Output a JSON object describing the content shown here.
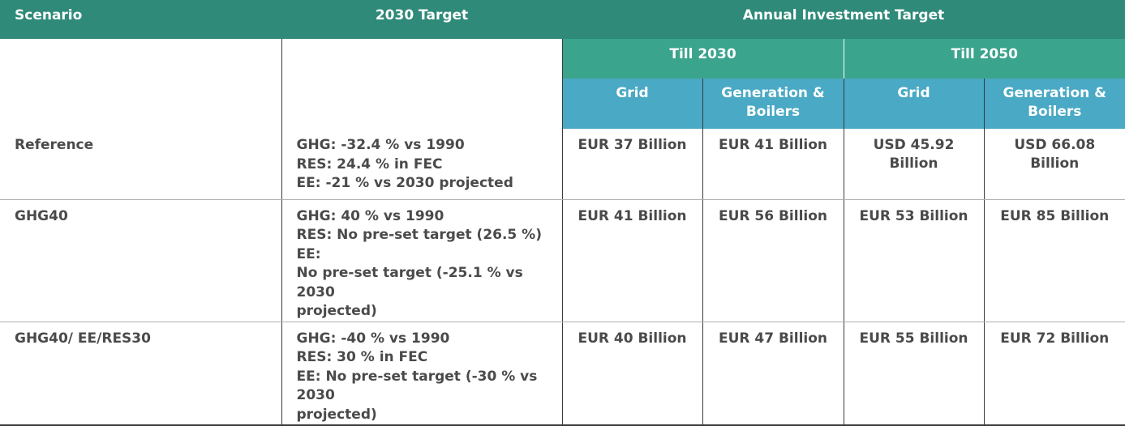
{
  "header": {
    "scenario": "Scenario",
    "target_2030": "2030 Target",
    "annual_investment": "Annual Investment Target",
    "till_2030": "Till 2030",
    "till_2050": "Till 2050",
    "grid_2030": "Grid",
    "gen_2030_line1": "Generation &",
    "gen_2030_line2": "Boilers",
    "grid_2050": "Grid",
    "gen_2050_line1": "Generation &",
    "gen_2050_line2": "Boilers"
  },
  "rows": [
    {
      "scenario": "Reference",
      "target_lines": [
        "GHG: -32.4 % vs 1990",
        "RES: 24.4 % in FEC",
        "EE: -21 % vs 2030 projected"
      ],
      "grid_2030": "EUR 37 Billion",
      "gen_2030": "EUR 41 Billion",
      "grid_2050_l1": "USD 45.92",
      "grid_2050_l2": "Billion",
      "gen_2050_l1": "USD 66.08",
      "gen_2050_l2": "Billion"
    },
    {
      "scenario": "GHG40",
      "target_lines": [
        "GHG: 40 % vs 1990",
        "RES: No pre-set target (26.5 %) EE:",
        "No pre-set target (-25.1 % vs 2030",
        "projected)"
      ],
      "grid_2030": "EUR 41 Billion",
      "gen_2030": "EUR 56 Billion",
      "grid_2050": "EUR 53 Billion",
      "gen_2050": "EUR 85 Billion"
    },
    {
      "scenario": "GHG40/ EE/RES30",
      "target_lines": [
        "GHG: -40 % vs 1990",
        "RES: 30 % in FEC",
        "EE: No pre-set target (-30 % vs 2030",
        "projected)"
      ],
      "grid_2030": "EUR 40 Billion",
      "gen_2030": "EUR 47 Billion",
      "grid_2050": "EUR 55 Billion",
      "gen_2050": "EUR 72 Billion"
    }
  ]
}
